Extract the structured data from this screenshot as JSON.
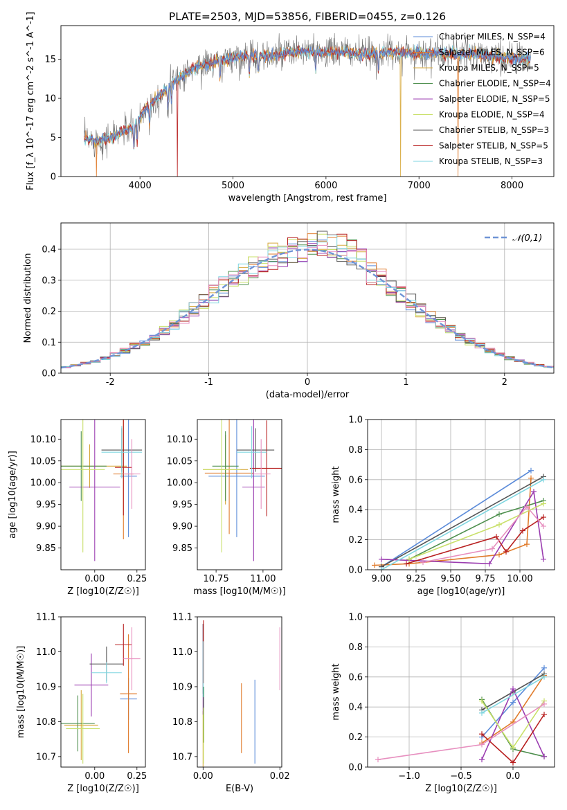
{
  "figure_title": "PLATE=2503, MJD=53856, FIBERID=0455, z=0.126",
  "colors": {
    "series": [
      "#5b8bd9",
      "#e07b2b",
      "#d7a83b",
      "#4d8f4d",
      "#9b3db0",
      "#c9e06a",
      "#555555",
      "#b82020",
      "#7fd6e0"
    ],
    "extra_pink": "#e78fbf",
    "normal": "#6f94d6"
  },
  "series_names": [
    "Chabrier MILES, N_SSP=4",
    "Salpeter MILES, N_SSP=6",
    "Kroupa MILES, N_SSP=5",
    "Chabrier ELODIE, N_SSP=4",
    "Salpeter ELODIE, N_SSP=5",
    "Kroupa ELODIE, N_SSP=4",
    "Chabrier STELIB, N_SSP=3",
    "Salpeter STELIB, N_SSP=5",
    "Kroupa STELIB, N_SSP=3"
  ],
  "chart_data": [
    {
      "id": "spectrum",
      "type": "line",
      "xlabel": "wavelength [Angstrom, rest frame]",
      "ylabel": "Flux [f_λ 10^-17 erg cm^-2 s^-1 A^-1]",
      "xlim": [
        3150,
        8450
      ],
      "ylim": [
        0,
        19.3
      ],
      "xticks": [
        4000,
        5000,
        6000,
        7000,
        8000
      ],
      "yticks": [
        0,
        5,
        10,
        15
      ],
      "legend": "right",
      "continuum": {
        "x": [
          3400,
          3550,
          3700,
          3850,
          3950,
          4050,
          4200,
          4400,
          4600,
          4800,
          5000,
          5200,
          5400,
          5600,
          5800,
          6000,
          6200,
          6400,
          6600,
          6800,
          7000,
          7200,
          7400,
          7600,
          7800,
          8000,
          8200
        ],
        "y": [
          4.8,
          4.6,
          5.0,
          6.0,
          6.3,
          8.6,
          10.2,
          12.4,
          14.0,
          14.6,
          15.2,
          15.6,
          15.4,
          15.8,
          16.0,
          15.9,
          16.0,
          15.6,
          15.8,
          15.9,
          15.8,
          15.7,
          15.6,
          15.7,
          15.3,
          15.2,
          15.0
        ]
      }
    },
    {
      "id": "residuals",
      "type": "histogram",
      "xlabel": "(data-model)/error",
      "ylabel": "Normed distribution",
      "xlim": [
        -2.5,
        2.5
      ],
      "ylim": [
        0,
        0.485
      ],
      "xticks": [
        -2,
        -1,
        0,
        1,
        2
      ],
      "yticks": [
        0.0,
        0.1,
        0.2,
        0.3,
        0.4
      ],
      "grid": true,
      "legend_label": "𝒩(0,1)",
      "legend": "top-right"
    },
    {
      "id": "age-vs-Z",
      "type": "errorbar",
      "xlabel": "Z [log10(Z/Z☉)]",
      "ylabel": "age [log10(age/yr)]",
      "xlim": [
        -0.2,
        0.3
      ],
      "ylim": [
        9.8,
        10.145
      ],
      "xticks": [
        0.0,
        0.25
      ],
      "yticks": [
        9.85,
        9.9,
        9.95,
        10.0,
        10.05,
        10.1
      ],
      "points": [
        {
          "x": 0.2,
          "xerr": 0.05,
          "y": 10.015,
          "yerr": 0.14,
          "c": 0
        },
        {
          "x": 0.17,
          "xerr": 0.06,
          "y": 10.02,
          "yerr": 0.15,
          "c": 1
        },
        {
          "x": -0.03,
          "xerr": 0.22,
          "y": 10.038,
          "yerr": 0.05,
          "c": 2
        },
        {
          "x": -0.08,
          "xerr": 0.15,
          "y": 10.038,
          "yerr": 0.08,
          "c": 3
        },
        {
          "x": 0.0,
          "xerr": 0.15,
          "y": 9.99,
          "yerr": 0.17,
          "c": 4
        },
        {
          "x": -0.07,
          "xerr": 0.13,
          "y": 10.03,
          "yerr": 0.19,
          "c": 5
        },
        {
          "x": 0.16,
          "xerr": 0.12,
          "y": 10.075,
          "yerr": 0.05,
          "c": 6
        },
        {
          "x": 0.17,
          "xerr": 0.05,
          "y": 10.035,
          "yerr": 0.11,
          "c": 7
        },
        {
          "x": 0.16,
          "xerr": 0.12,
          "y": 10.07,
          "yerr": 0.06,
          "c": 8
        },
        {
          "x": 0.22,
          "xerr": 0.05,
          "y": 10.02,
          "yerr": 0.08,
          "c": "pink"
        }
      ]
    },
    {
      "id": "age-vs-mass",
      "type": "errorbar",
      "xlabel": "mass [log10(M/M☉)]",
      "ylabel": "",
      "xlim": [
        10.65,
        11.1
      ],
      "ylim": [
        9.8,
        10.145
      ],
      "xticks": [
        10.75,
        11.0
      ],
      "yticks": [
        9.85,
        9.9,
        9.95,
        10.0,
        10.05,
        10.1
      ],
      "points": [
        {
          "x": 10.86,
          "xerr": 0.15,
          "y": 10.015,
          "yerr": 0.14,
          "c": 0
        },
        {
          "x": 10.82,
          "xerr": 0.13,
          "y": 10.022,
          "yerr": 0.14,
          "c": 1
        },
        {
          "x": 10.8,
          "xerr": 0.12,
          "y": 10.03,
          "yerr": 0.08,
          "c": 2
        },
        {
          "x": 10.8,
          "xerr": 0.07,
          "y": 10.038,
          "yerr": 0.08,
          "c": 3
        },
        {
          "x": 10.95,
          "xerr": 0.06,
          "y": 9.99,
          "yerr": 0.17,
          "c": 4
        },
        {
          "x": 10.78,
          "xerr": 0.1,
          "y": 10.03,
          "yerr": 0.19,
          "c": 5
        },
        {
          "x": 10.96,
          "xerr": 0.1,
          "y": 10.075,
          "yerr": 0.05,
          "c": 6
        },
        {
          "x": 11.02,
          "xerr": 0.09,
          "y": 10.033,
          "yerr": 0.11,
          "c": 7
        },
        {
          "x": 10.94,
          "xerr": 0.08,
          "y": 10.07,
          "yerr": 0.06,
          "c": 8
        },
        {
          "x": 10.99,
          "xerr": 0.05,
          "y": 10.02,
          "yerr": 0.08,
          "c": "pink"
        }
      ]
    },
    {
      "id": "weight-vs-age",
      "type": "line",
      "xlabel": "age [log10(age/yr)]",
      "ylabel": "mass weight",
      "xlim": [
        8.9,
        10.25
      ],
      "ylim": [
        0,
        1.0
      ],
      "xticks": [
        9.0,
        9.25,
        9.5,
        9.75,
        10.0
      ],
      "yticks": [
        0.0,
        0.2,
        0.4,
        0.6,
        0.8,
        1.0
      ],
      "grid": true,
      "series": [
        {
          "c": 0,
          "x": [
            9.0,
            10.08
          ],
          "y": [
            0.02,
            0.66
          ]
        },
        {
          "c": 1,
          "x": [
            8.95,
            9.2,
            9.85,
            10.05,
            10.08
          ],
          "y": [
            0.03,
            0.04,
            0.1,
            0.17,
            0.61
          ]
        },
        {
          "c": 6,
          "x": [
            9.0,
            10.17
          ],
          "y": [
            0.02,
            0.62
          ]
        },
        {
          "c": 3,
          "x": [
            9.2,
            9.85,
            10.17
          ],
          "y": [
            0.07,
            0.37,
            0.46
          ]
        },
        {
          "c": 4,
          "x": [
            9.0,
            9.78,
            10.1,
            10.17
          ],
          "y": [
            0.07,
            0.04,
            0.52,
            0.07
          ]
        },
        {
          "c": 5,
          "x": [
            9.2,
            9.85,
            10.17
          ],
          "y": [
            0.07,
            0.3,
            0.44
          ]
        },
        {
          "c": 7,
          "x": [
            9.18,
            9.83,
            9.9,
            10.02,
            10.17
          ],
          "y": [
            0.04,
            0.22,
            0.12,
            0.26,
            0.35
          ]
        },
        {
          "c": 8,
          "x": [
            9.0,
            10.17
          ],
          "y": [
            0.0,
            0.6
          ]
        },
        {
          "c": "pink",
          "x": [
            9.3,
            9.8,
            10.05,
            10.17
          ],
          "y": [
            0.05,
            0.14,
            0.42,
            0.29
          ]
        }
      ]
    },
    {
      "id": "mass-vs-Z",
      "type": "errorbar",
      "xlabel": "Z [log10(Z/Z☉)]",
      "ylabel": "mass [log10(M/M☉)]",
      "xlim": [
        -0.2,
        0.3
      ],
      "ylim": [
        10.67,
        11.1
      ],
      "xticks": [
        0.0,
        0.25
      ],
      "yticks": [
        10.7,
        10.8,
        10.9,
        11.0,
        11.1
      ],
      "points": [
        {
          "x": 0.2,
          "xerr": 0.05,
          "y": 10.865,
          "yerr": 0.06,
          "c": 0
        },
        {
          "x": 0.2,
          "xerr": 0.05,
          "y": 10.88,
          "yerr": 0.17,
          "c": 1
        },
        {
          "x": -0.08,
          "xerr": 0.1,
          "y": 10.79,
          "yerr": 0.1,
          "c": 2
        },
        {
          "x": -0.1,
          "xerr": 0.1,
          "y": 10.795,
          "yerr": 0.08,
          "c": 3
        },
        {
          "x": -0.02,
          "xerr": 0.1,
          "y": 10.905,
          "yerr": 0.09,
          "c": 4
        },
        {
          "x": -0.07,
          "xerr": 0.1,
          "y": 10.78,
          "yerr": 0.1,
          "c": 5
        },
        {
          "x": 0.07,
          "xerr": 0.1,
          "y": 10.965,
          "yerr": 0.05,
          "c": 6
        },
        {
          "x": 0.17,
          "xerr": 0.05,
          "y": 11.02,
          "yerr": 0.06,
          "c": 7
        },
        {
          "x": 0.07,
          "xerr": 0.09,
          "y": 10.94,
          "yerr": 0.03,
          "c": 8
        },
        {
          "x": 0.22,
          "xerr": 0.05,
          "y": 10.98,
          "yerr": 0.09,
          "c": "pink"
        }
      ]
    },
    {
      "id": "mass-vs-EBV",
      "type": "errorbar",
      "xlabel": "E(B-V)",
      "ylabel": "",
      "xlim": [
        -0.0015,
        0.0205
      ],
      "ylim": [
        10.67,
        11.1
      ],
      "xticks": [
        0.0,
        0.02
      ],
      "yticks": [
        10.7,
        10.8,
        10.9,
        11.0,
        11.1
      ],
      "points": [
        {
          "x": 0.0135,
          "xerr": 0,
          "y": 10.8,
          "yerr": 0.12,
          "c": 0
        },
        {
          "x": 0.01,
          "xerr": 0,
          "y": 10.81,
          "yerr": 0.1,
          "c": 1
        },
        {
          "x": 0.0,
          "xerr": 0,
          "y": 10.75,
          "yerr": 0.08,
          "c": 2
        },
        {
          "x": 0.0002,
          "xerr": 0,
          "y": 10.82,
          "yerr": 0.08,
          "c": 3
        },
        {
          "x": 0.0,
          "xerr": 0,
          "y": 10.95,
          "yerr": 0.13,
          "c": 4
        },
        {
          "x": 0.0001,
          "xerr": 0,
          "y": 10.76,
          "yerr": 0.08,
          "c": 5
        },
        {
          "x": 0.0,
          "xerr": 0,
          "y": 10.98,
          "yerr": 0.1,
          "c": 6
        },
        {
          "x": 0.0001,
          "xerr": 0,
          "y": 11.0,
          "yerr": 0.09,
          "c": 7
        },
        {
          "x": 0.0,
          "xerr": 0,
          "y": 10.95,
          "yerr": 0.08,
          "c": 8
        },
        {
          "x": 0.02,
          "xerr": 0,
          "y": 10.98,
          "yerr": 0.09,
          "c": "pink"
        }
      ]
    },
    {
      "id": "weight-vs-Z",
      "type": "line",
      "xlabel": "Z [log10(Z/Z☉)]",
      "ylabel": "mass weight",
      "xlim": [
        -1.4,
        0.4
      ],
      "ylim": [
        0,
        1.0
      ],
      "xticks": [
        -1.0,
        -0.5,
        0.0
      ],
      "yticks": [
        0.0,
        0.2,
        0.4,
        0.6,
        0.8,
        1.0
      ],
      "grid": true,
      "series": [
        {
          "c": 0,
          "x": [
            -0.3,
            0.0,
            0.3
          ],
          "y": [
            0.2,
            0.43,
            0.66
          ]
        },
        {
          "c": 1,
          "x": [
            -0.3,
            0.0,
            0.3
          ],
          "y": [
            0.16,
            0.3,
            0.61
          ]
        },
        {
          "c": 6,
          "x": [
            -0.3,
            0.0,
            0.3
          ],
          "y": [
            0.38,
            0.5,
            0.62
          ]
        },
        {
          "c": 3,
          "x": [
            -0.3,
            0.0,
            0.3
          ],
          "y": [
            0.45,
            0.12,
            0.07
          ]
        },
        {
          "c": 4,
          "x": [
            -0.3,
            0.0,
            0.3
          ],
          "y": [
            0.05,
            0.52,
            0.07
          ]
        },
        {
          "c": 5,
          "x": [
            -0.3,
            0.0,
            0.3
          ],
          "y": [
            0.44,
            0.13,
            0.44
          ]
        },
        {
          "c": 7,
          "x": [
            -0.3,
            0.0,
            0.3
          ],
          "y": [
            0.22,
            0.03,
            0.35
          ]
        },
        {
          "c": 8,
          "x": [
            -0.3,
            0.3
          ],
          "y": [
            0.36,
            0.6
          ]
        },
        {
          "c": "pink",
          "x": [
            -1.3,
            -0.3,
            0.3
          ],
          "y": [
            0.05,
            0.15,
            0.42
          ]
        }
      ]
    }
  ]
}
